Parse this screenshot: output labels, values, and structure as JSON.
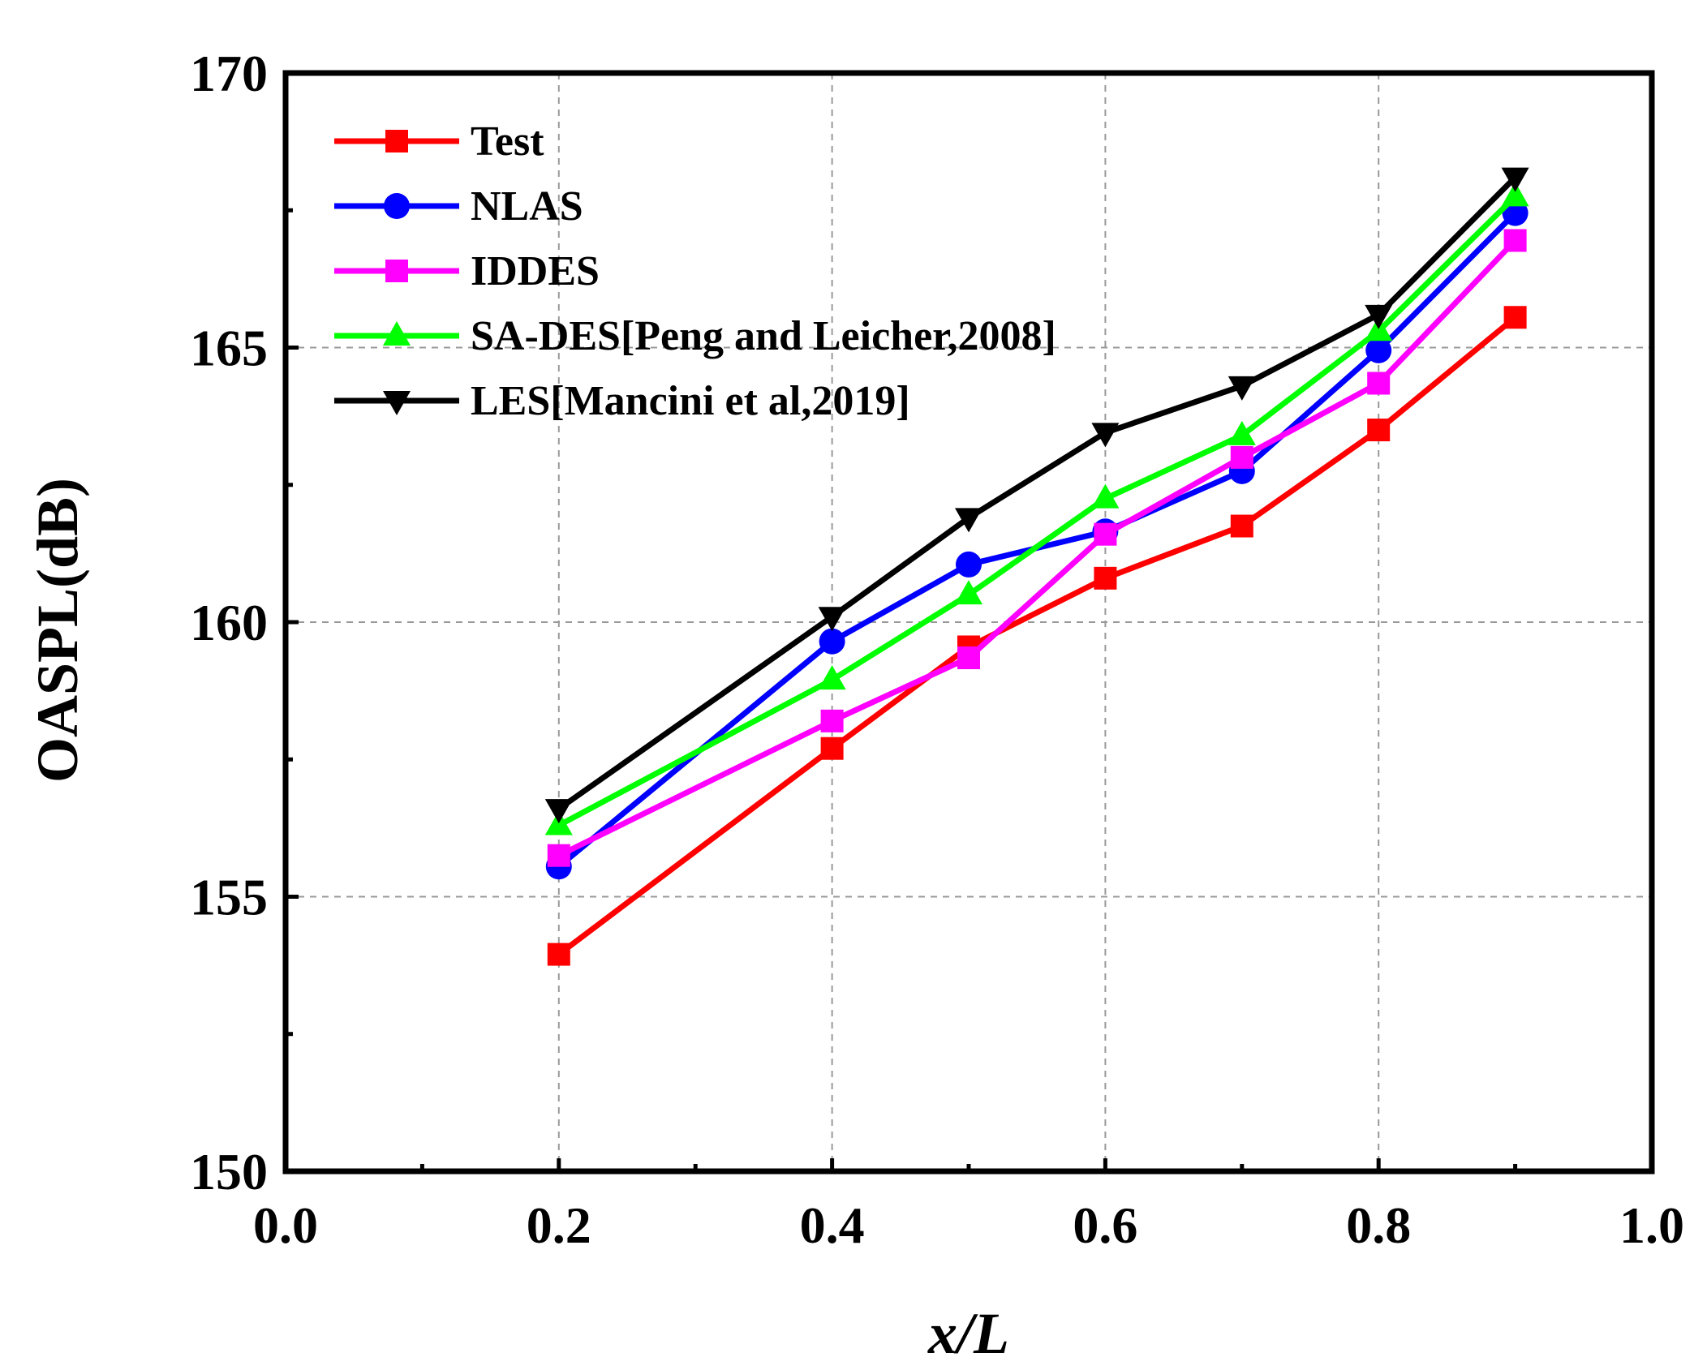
{
  "chart_data": {
    "type": "line",
    "title": "",
    "xlabel": "x/L",
    "ylabel": "OASPL(dB)",
    "xlim": [
      0.0,
      1.0
    ],
    "ylim": [
      150,
      170
    ],
    "x_ticks": [
      "0.0",
      "0.2",
      "0.4",
      "0.6",
      "0.8",
      "1.0"
    ],
    "y_ticks": [
      "150",
      "155",
      "160",
      "165",
      "170"
    ],
    "grid": true,
    "legend_position": "top-left",
    "x": [
      0.2,
      0.4,
      0.5,
      0.6,
      0.7,
      0.8,
      0.9
    ],
    "series": [
      {
        "name": "Test",
        "color": "#ff0000",
        "marker": "square",
        "values": [
          153.95,
          157.7,
          159.55,
          160.8,
          161.75,
          163.5,
          165.55
        ]
      },
      {
        "name": "NLAS",
        "color": "#0000ff",
        "marker": "circle",
        "values": [
          155.55,
          159.65,
          161.05,
          161.65,
          162.75,
          164.95,
          167.45
        ]
      },
      {
        "name": "IDDES",
        "color": "#ff00ff",
        "marker": "square",
        "values": [
          155.75,
          158.2,
          159.35,
          161.6,
          163.0,
          164.35,
          166.95
        ]
      },
      {
        "name": "SA-DES[Peng and Leicher,2008]",
        "color": "#00ff00",
        "marker": "triangle-up",
        "values": [
          156.3,
          158.95,
          160.5,
          162.25,
          163.4,
          165.3,
          167.75
        ]
      },
      {
        "name": "LES[Mancini et al,2019]",
        "color": "#000000",
        "marker": "triangle-down",
        "values": [
          156.6,
          160.1,
          161.9,
          163.45,
          164.3,
          165.6,
          168.1
        ]
      }
    ]
  }
}
